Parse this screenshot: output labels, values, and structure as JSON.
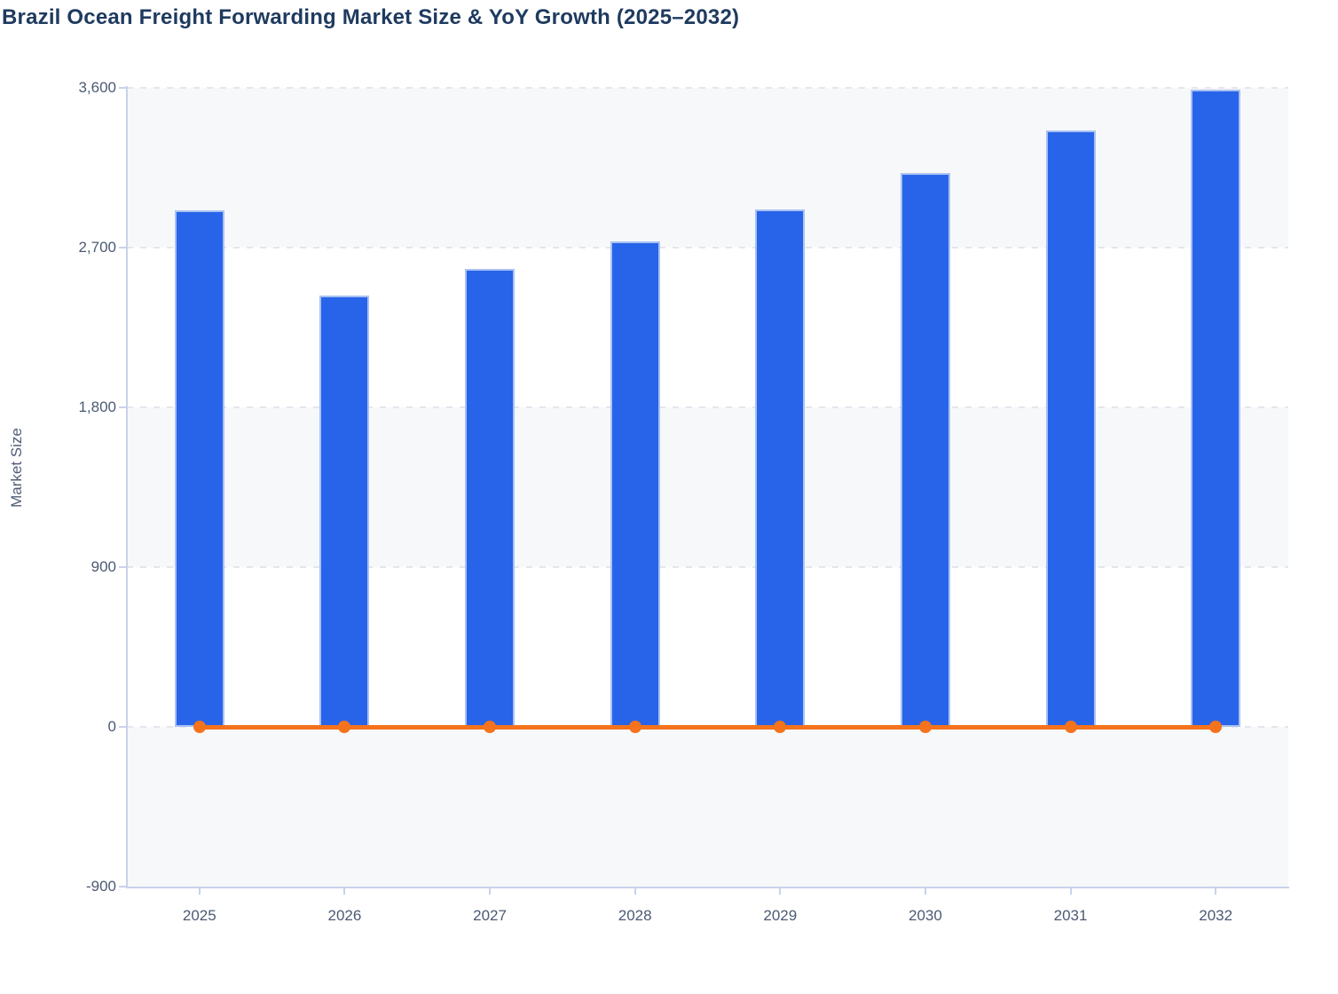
{
  "header": {
    "title": "Brazil Ocean Freight Forwarding Market Size & YoY Growth (2025–2032)"
  },
  "chart_data": {
    "type": "bar",
    "subtype": "bar-line-combo",
    "title": "Brazil Ocean Freight Forwarding Market Size & YoY Growth (2025–2032)",
    "categories": [
      "2025",
      "2026",
      "2027",
      "2028",
      "2029",
      "2030",
      "2031",
      "2032"
    ],
    "series": [
      {
        "name": "Market Size",
        "type": "bar",
        "values": [
          2910,
          2430,
          2580,
          2735,
          2915,
          3120,
          3360,
          3590
        ]
      },
      {
        "name": "YoY Growth",
        "type": "line",
        "values": [
          0,
          0,
          0,
          0,
          0,
          0,
          0,
          0
        ]
      }
    ],
    "xlabel": "",
    "ylabel": "Market Size",
    "ylim": [
      -900,
      3600
    ],
    "ytick_step": 900,
    "ytick_labels": [
      "3,600",
      "2,700",
      "1,800",
      "900",
      "0",
      "-900"
    ],
    "grid": "horizontal-dashed",
    "legend_position": "none",
    "colors": {
      "bar_fill": "#2764e9",
      "bar_border": "#a9c1f2",
      "line": "#f4731c",
      "axis": "#c8d2ea",
      "gridline": "#e3e6ec",
      "band": "#f7f8fa",
      "tick_label": "#4c5a73",
      "title": "#1e3a5f",
      "axis_title": "#4f5d75"
    }
  }
}
